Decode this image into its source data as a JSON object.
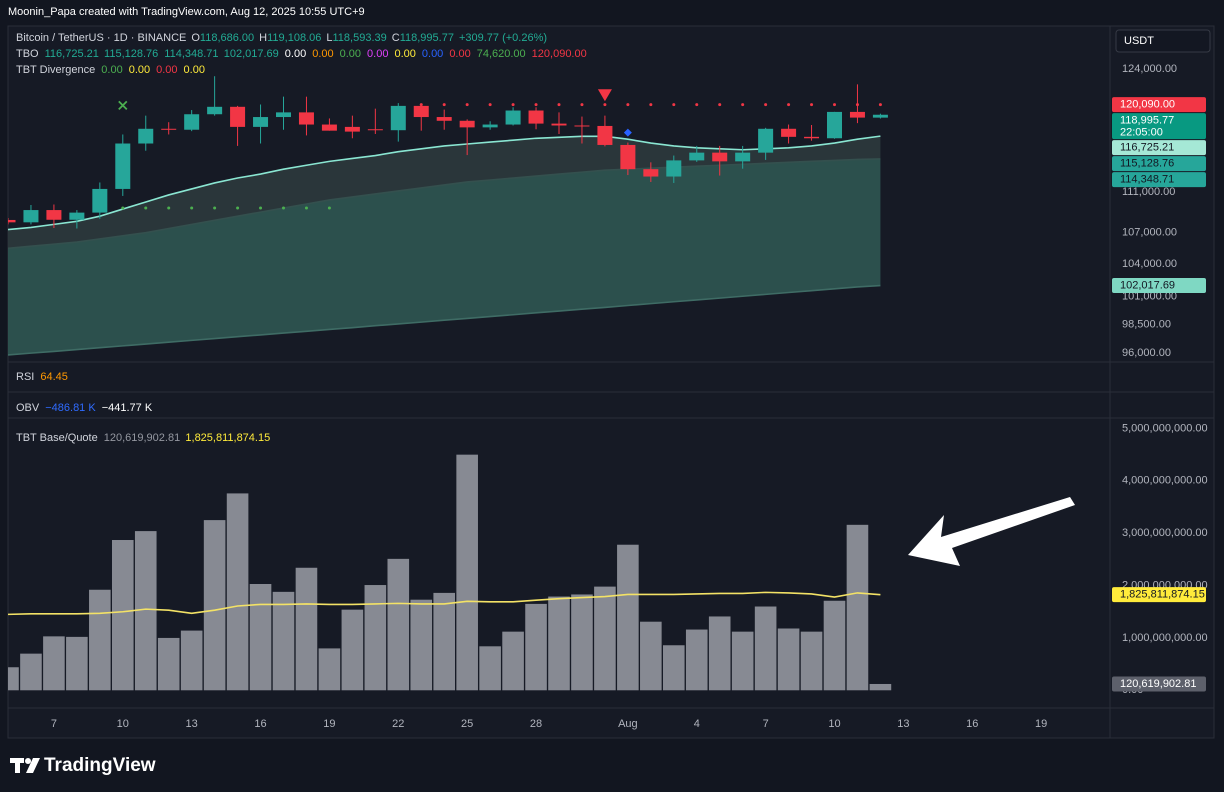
{
  "header": "Moonin_Papa created with TradingView.com, Aug 12, 2025 10:55 UTC+9",
  "currency": "USDT",
  "brand": "TradingView",
  "panes": [
    {
      "label": "RSI",
      "values": [
        {
          "text": "64.45",
          "color": "#ff9800"
        }
      ]
    },
    {
      "label": "OBV",
      "values": [
        {
          "text": "−486.81 K",
          "color": "#2f6bff"
        },
        {
          "text": "−441.77 K",
          "color": "#ffffff"
        }
      ]
    }
  ],
  "chart_data": [
    {
      "type": "candlestick",
      "title": "Bitcoin / TetherUS · 1D · BINANCE",
      "ohlc_legend": [
        {
          "key": "O",
          "value": "118,686.00"
        },
        {
          "key": "H",
          "value": "119,108.06"
        },
        {
          "key": "L",
          "value": "118,593.39"
        },
        {
          "key": "C",
          "value": "118,995.77"
        }
      ],
      "change": "+309.77 (+0.26%)",
      "legend_color": "#22ab94",
      "legend": [
        {
          "label": "TBO",
          "values": [
            {
              "text": "116,725.21",
              "color": "#22ab94"
            },
            {
              "text": "115,128.76",
              "color": "#22ab94"
            },
            {
              "text": "114,348.71",
              "color": "#22ab94"
            },
            {
              "text": "102,017.69",
              "color": "#22ab94"
            },
            {
              "text": "0.00",
              "color": "#ffffff"
            },
            {
              "text": "0.00",
              "color": "#ff9800"
            },
            {
              "text": "0.00",
              "color": "#4caf50"
            },
            {
              "text": "0.00",
              "color": "#e040fb"
            },
            {
              "text": "0.00",
              "color": "#ffeb3b"
            },
            {
              "text": "0.00",
              "color": "#2962ff"
            },
            {
              "text": "0.00",
              "color": "#f23645"
            },
            {
              "text": "74,620.00",
              "color": "#4caf50"
            },
            {
              "text": "120,090.00",
              "color": "#f23645"
            }
          ]
        },
        {
          "label": "TBT Divergence",
          "values": [
            {
              "text": "0.00",
              "color": "#4caf50"
            },
            {
              "text": "0.00",
              "color": "#ffeb3b"
            },
            {
              "text": "0.00",
              "color": "#f23645"
            },
            {
              "text": "0.00",
              "color": "#ffeb3b"
            }
          ]
        }
      ],
      "categories": [
        "Jul 5",
        "Jul 6",
        "Jul 7",
        "Jul 8",
        "Jul 9",
        "Jul 10",
        "Jul 11",
        "Jul 12",
        "Jul 13",
        "Jul 14",
        "Jul 15",
        "Jul 16",
        "Jul 17",
        "Jul 18",
        "Jul 19",
        "Jul 20",
        "Jul 21",
        "Jul 22",
        "Jul 23",
        "Jul 24",
        "Jul 25",
        "Jul 26",
        "Jul 27",
        "Jul 28",
        "Jul 29",
        "Jul 30",
        "Jul 31",
        "Aug 1",
        "Aug 2",
        "Aug 3",
        "Aug 4",
        "Aug 5",
        "Aug 6",
        "Aug 7",
        "Aug 8",
        "Aug 9",
        "Aug 10",
        "Aug 11",
        "Aug 12"
      ],
      "ohlc": [
        [
          108230,
          108420,
          107800,
          108000
        ],
        [
          108000,
          109700,
          107800,
          109200
        ],
        [
          109200,
          109750,
          107450,
          108250
        ],
        [
          108250,
          109200,
          107400,
          108950
        ],
        [
          108950,
          111950,
          108350,
          111300
        ],
        [
          111300,
          116900,
          110600,
          115950
        ],
        [
          115950,
          118900,
          115200,
          117500
        ],
        [
          117500,
          118200,
          116900,
          117400
        ],
        [
          117400,
          119500,
          117250,
          119050
        ],
        [
          119050,
          123200,
          118900,
          119850
        ],
        [
          119850,
          119950,
          115700,
          117700
        ],
        [
          117700,
          120100,
          115950,
          118750
        ],
        [
          118750,
          120950,
          117400,
          119250
        ],
        [
          119250,
          120950,
          116800,
          117950
        ],
        [
          117950,
          118600,
          117300,
          117300
        ],
        [
          117700,
          118900,
          116500,
          117200
        ],
        [
          117450,
          119650,
          116950,
          117350
        ],
        [
          117350,
          120250,
          116150,
          119950
        ],
        [
          119950,
          120100,
          117300,
          118750
        ],
        [
          118750,
          119550,
          117400,
          118350
        ],
        [
          118350,
          118500,
          114750,
          117650
        ],
        [
          117650,
          118300,
          117400,
          117950
        ],
        [
          117950,
          119800,
          117850,
          119450
        ],
        [
          119450,
          119800,
          117450,
          118050
        ],
        [
          118050,
          119250,
          116950,
          117850
        ],
        [
          117850,
          118800,
          115950,
          117800
        ],
        [
          117800,
          118900,
          115650,
          115800
        ],
        [
          115800,
          116050,
          112700,
          113300
        ],
        [
          113300,
          114000,
          112000,
          112550
        ],
        [
          112550,
          114700,
          111900,
          114200
        ],
        [
          114200,
          115700,
          114050,
          115000
        ],
        [
          115000,
          115700,
          112650,
          114100
        ],
        [
          114100,
          115700,
          113350,
          115000
        ],
        [
          115000,
          117600,
          114250,
          117500
        ],
        [
          117500,
          117950,
          115950,
          116650
        ],
        [
          116650,
          117900,
          116250,
          116500
        ],
        [
          116500,
          119300,
          116450,
          119300
        ],
        [
          119300,
          122300,
          118100,
          118690
        ],
        [
          118686,
          119108.06,
          118593.39,
          118995.77
        ]
      ],
      "up_color": "#26a69a",
      "down_color": "#f23645",
      "series": [
        {
          "color": "#8ae6d2",
          "fill": "#2c3a3d",
          "values": [
            107300,
            107500,
            107800,
            108100,
            108600,
            109300,
            110000,
            110700,
            111300,
            111900,
            112400,
            112800,
            113300,
            113700,
            114100,
            114400,
            114700,
            115100,
            115400,
            115700,
            115900,
            116100,
            116300,
            116500,
            116600,
            116700,
            116700,
            116400,
            116000,
            115700,
            115500,
            115400,
            115300,
            115400,
            115500,
            115700,
            116000,
            116400,
            116725.21
          ]
        },
        {
          "color": "#34504e",
          "fill": "#2f5752",
          "values": [
            105500,
            105700,
            105900,
            106100,
            106400,
            106700,
            107000,
            107400,
            107800,
            108200,
            108600,
            109000,
            109400,
            109800,
            110200,
            110500,
            110800,
            111100,
            111400,
            111700,
            112000,
            112200,
            112400,
            112600,
            112800,
            113000,
            113200,
            113300,
            113400,
            113500,
            113600,
            113700,
            113800,
            113900,
            114000,
            114100,
            114200,
            114300,
            114348.71
          ]
        },
        {
          "color": "#3f6c65",
          "values": [
            95830,
            95990,
            96140,
            96300,
            96460,
            96620,
            96780,
            96940,
            97100,
            97260,
            97420,
            97580,
            97740,
            97900,
            98060,
            98220,
            98390,
            98550,
            98710,
            98880,
            99040,
            99210,
            99370,
            99540,
            99700,
            99870,
            100030,
            100200,
            100370,
            100540,
            100700,
            100870,
            101040,
            101210,
            101380,
            101550,
            101720,
            101890,
            102017.69
          ]
        }
      ],
      "dot_levels": [
        {
          "value": 120090,
          "from": "Jul 23",
          "to": "Aug 12",
          "color": "#f23645"
        },
        {
          "value": 109400,
          "from": "Jul 10",
          "to": "Jul 19",
          "color": "#4caf50"
        }
      ],
      "markers": [
        {
          "category": "Jul 10",
          "value": 120000,
          "shape": "cross",
          "color": "#4caf50"
        },
        {
          "category": "Jul 31",
          "value": 121100,
          "shape": "triangle-down",
          "color": "#f23645"
        },
        {
          "category": "Aug 1",
          "value": 117100,
          "shape": "diamond",
          "color": "#2962ff"
        }
      ],
      "axis_labels": [
        {
          "value": 120090,
          "label": "120,090.00",
          "color": "#f23645",
          "text_color": "#ffffff"
        },
        {
          "value": 118995.77,
          "label": "118,995.77",
          "sub": "22:05:00",
          "color": "#089981",
          "text_color": "#ffffff"
        },
        {
          "value": 116725.21,
          "label": "116,725.21",
          "color": "#a5e8d6",
          "text_color": "#131722"
        },
        {
          "value": 115128.76,
          "label": "115,128.76",
          "color": "#26a69a",
          "text_color": "#131722"
        },
        {
          "value": 114348.71,
          "label": "114,348.71",
          "color": "#26a69a",
          "text_color": "#131722"
        },
        {
          "value": 102017.69,
          "label": "102,017.69",
          "color": "#7fd8c3",
          "text_color": "#131722"
        }
      ],
      "log_scale": true,
      "ylim": [
        95570,
        128440
      ],
      "yticks": [
        {
          "value": 124000,
          "label": "124,000.00"
        },
        {
          "value": 111000,
          "label": "111,000.00"
        },
        {
          "value": 107000,
          "label": "107,000.00"
        },
        {
          "value": 104000,
          "label": "104,000.00"
        },
        {
          "value": 101000,
          "label": "101,000.00"
        },
        {
          "value": 98500,
          "label": "98,500.00"
        },
        {
          "value": 96000,
          "label": "96,000.00"
        }
      ],
      "xlim": [
        "Jul 5",
        "Aug 22"
      ],
      "xticks": [
        {
          "value": "Jul 7",
          "label": "7"
        },
        {
          "value": "Jul 10",
          "label": "10"
        },
        {
          "value": "Jul 13",
          "label": "13"
        },
        {
          "value": "Jul 16",
          "label": "16"
        },
        {
          "value": "Jul 19",
          "label": "19"
        },
        {
          "value": "Jul 22",
          "label": "22"
        },
        {
          "value": "Jul 25",
          "label": "25"
        },
        {
          "value": "Jul 28",
          "label": "28"
        },
        {
          "value": "Aug 1",
          "label": "Aug"
        },
        {
          "value": "Aug 4",
          "label": "4"
        },
        {
          "value": "Aug 7",
          "label": "7"
        },
        {
          "value": "Aug 10",
          "label": "10"
        },
        {
          "value": "Aug 13",
          "label": "13"
        },
        {
          "value": "Aug 16",
          "label": "16"
        },
        {
          "value": "Aug 19",
          "label": "19"
        }
      ],
      "grid": false
    },
    {
      "type": "bar",
      "legend": [
        {
          "label": "TBT Base/Quote",
          "values": [
            {
              "text": "120,619,902.81",
              "color": "#9598a1"
            },
            {
              "text": "1,825,811,874.15",
              "color": "#ffeb3b"
            }
          ]
        }
      ],
      "values": [
        440000000,
        700000000,
        1030000000,
        1020000000,
        1920000000,
        2870000000,
        3040000000,
        1000000000,
        1140000000,
        3250000000,
        3760000000,
        2030000000,
        1880000000,
        2340000000,
        800000000,
        1540000000,
        2010000000,
        2510000000,
        1730000000,
        1860000000,
        4500000000,
        840000000,
        1120000000,
        1650000000,
        1790000000,
        1830000000,
        1980000000,
        2780000000,
        1310000000,
        860000000,
        1160000000,
        1410000000,
        1120000000,
        1600000000,
        1180000000,
        1120000000,
        1710000000,
        3160000000,
        120619902.81
      ],
      "color": "#878a93",
      "series": [
        {
          "color": "#f3e266",
          "values": [
            1450000000,
            1460000000,
            1460000000,
            1460000000,
            1470000000,
            1500000000,
            1550000000,
            1530000000,
            1470000000,
            1530000000,
            1610000000,
            1640000000,
            1640000000,
            1650000000,
            1640000000,
            1640000000,
            1650000000,
            1660000000,
            1650000000,
            1650000000,
            1700000000,
            1690000000,
            1690000000,
            1720000000,
            1750000000,
            1770000000,
            1790000000,
            1830000000,
            1830000000,
            1830000000,
            1840000000,
            1850000000,
            1850000000,
            1870000000,
            1860000000,
            1840000000,
            1780000000,
            1860000000,
            1825811874.15
          ]
        }
      ],
      "axis_labels": [
        {
          "value": 1825811874.15,
          "label": "1,825,811,874.15",
          "color": "#ffeb3b",
          "text_color": "#131722"
        },
        {
          "value": 120619902.81,
          "label": "120,619,902.81",
          "color": "#5d606b",
          "text_color": "#ffffff"
        }
      ],
      "ylim": [
        -300000000,
        5200000000
      ],
      "yticks": [
        {
          "value": 0,
          "label": "0.00"
        },
        {
          "value": 1000000000,
          "label": "1,000,000,000.00"
        },
        {
          "value": 2000000000,
          "label": "2,000,000,000.00"
        },
        {
          "value": 3000000000,
          "label": "3,000,000,000.00"
        },
        {
          "value": 4000000000,
          "label": "4,000,000,000.00"
        },
        {
          "value": 5000000000,
          "label": "5,000,000,000.00"
        }
      ],
      "grid": false
    }
  ]
}
